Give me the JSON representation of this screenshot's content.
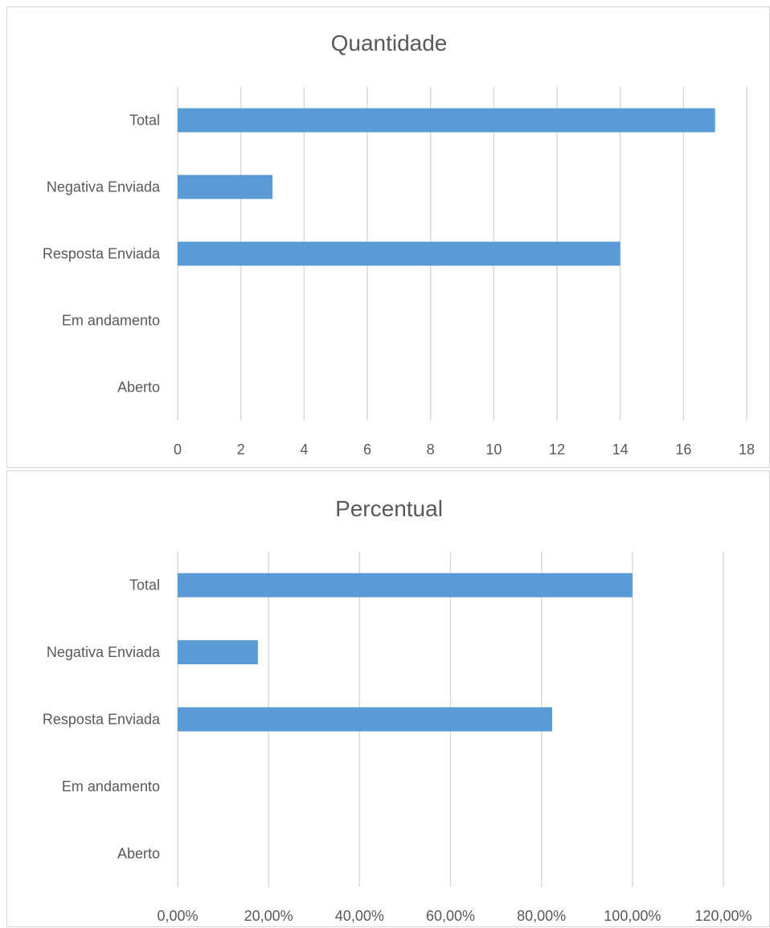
{
  "chart_data": [
    {
      "type": "bar",
      "orientation": "horizontal",
      "title": "Quantidade",
      "xlabel": "",
      "ylabel": "",
      "categories": [
        "Total",
        "Negativa Enviada",
        "Resposta Enviada",
        "Em andamento",
        "Aberto"
      ],
      "values": [
        17,
        3,
        14,
        0,
        0
      ],
      "xlim": [
        0,
        18
      ],
      "ticks": [
        0,
        2,
        4,
        6,
        8,
        10,
        12,
        14,
        16,
        18
      ],
      "tick_labels": [
        "0",
        "2",
        "4",
        "6",
        "8",
        "10",
        "12",
        "14",
        "16",
        "18"
      ],
      "grid": true,
      "bar_color": "#5B9BD5"
    },
    {
      "type": "bar",
      "orientation": "horizontal",
      "title": "Percentual",
      "xlabel": "",
      "ylabel": "",
      "categories": [
        "Total",
        "Negativa Enviada",
        "Resposta Enviada",
        "Em andamento",
        "Aberto"
      ],
      "values": [
        100,
        17.65,
        82.35,
        0,
        0
      ],
      "xlim": [
        0,
        120
      ],
      "ticks": [
        0,
        20,
        40,
        60,
        80,
        100,
        120
      ],
      "tick_labels": [
        "0,00%",
        "20,00%",
        "40,00%",
        "60,00%",
        "80,00%",
        "100,00%",
        "120,00%"
      ],
      "grid": true,
      "bar_color": "#5B9BD5"
    }
  ]
}
